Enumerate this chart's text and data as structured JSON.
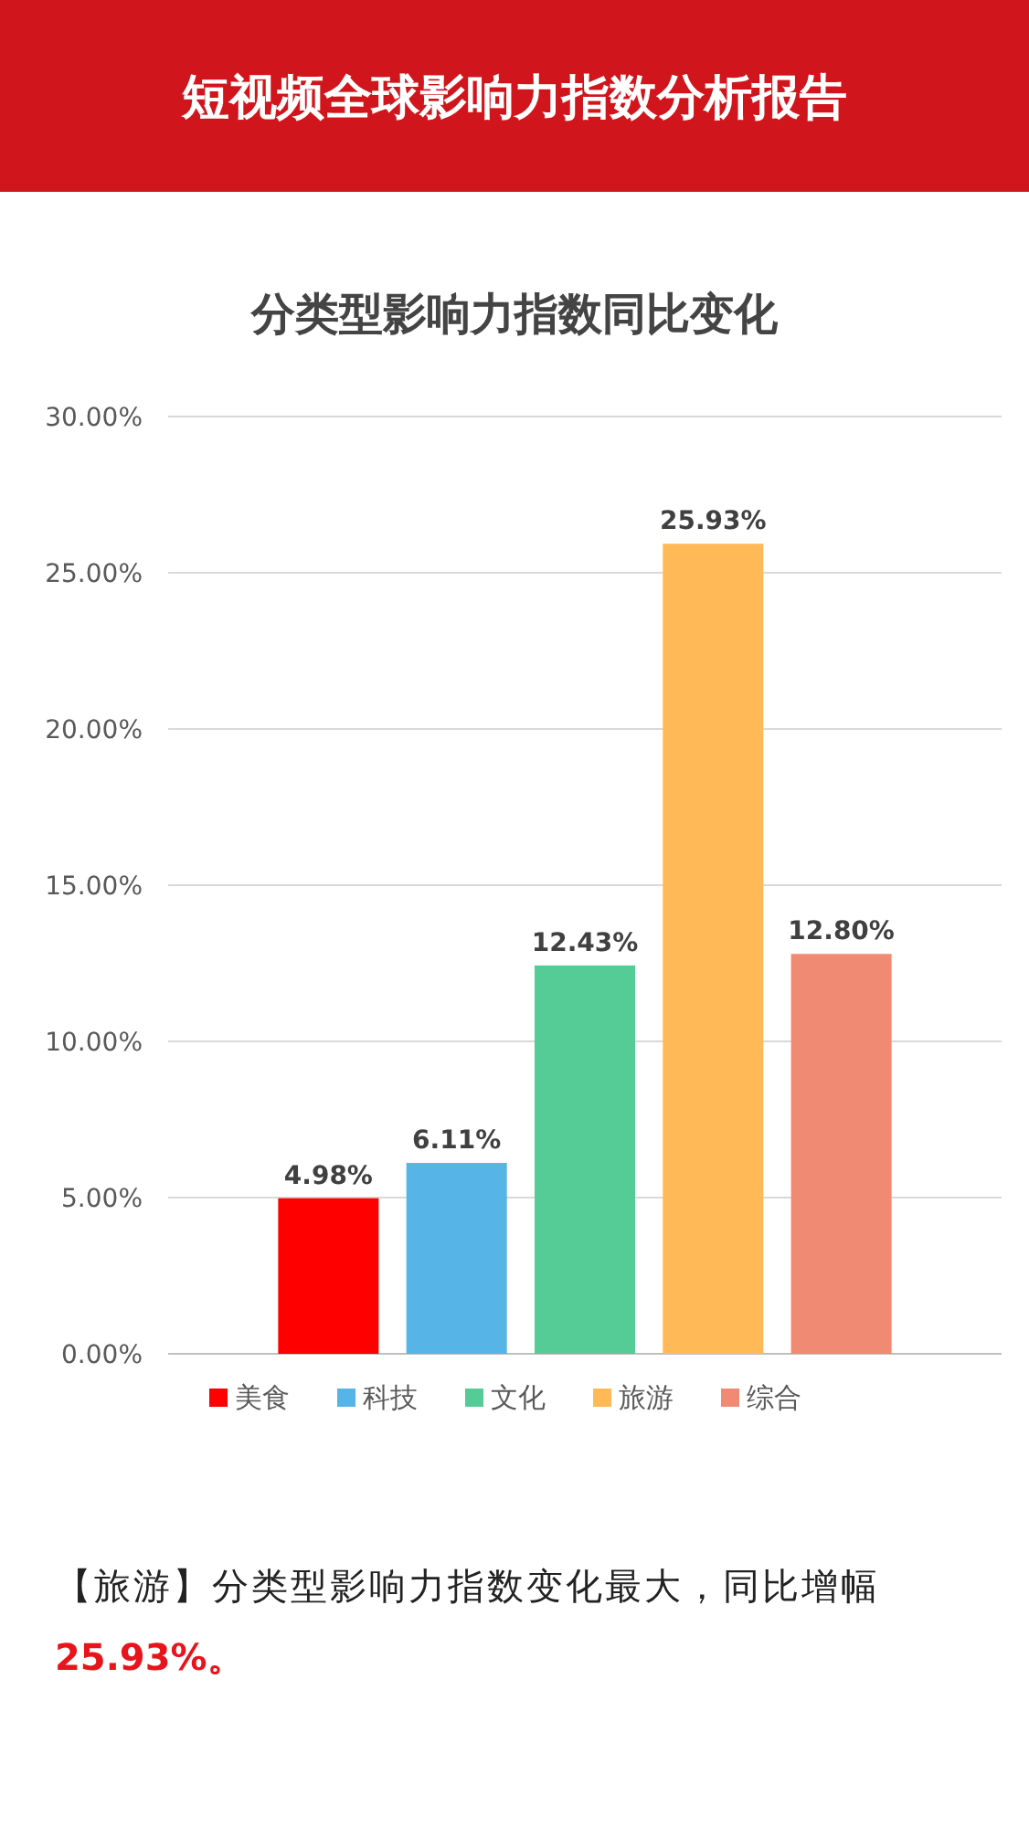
{
  "chart_data": {
    "type": "bar",
    "title": "分类型影响力指数同比变化",
    "subtitle": "短视频全球影响力指数分析报告",
    "categories": [
      null,
      null,
      null,
      null,
      null
    ],
    "series": [
      {
        "name": "美食",
        "color": "#ff0000",
        "values": [
          4.98,
          null,
          null,
          null,
          null
        ],
        "value_labels": [
          "4.98%",
          null,
          null,
          null,
          null
        ]
      },
      {
        "name": "科技",
        "color": "#56b4e6",
        "values": [
          null,
          6.11,
          null,
          null,
          null
        ],
        "value_labels": [
          null,
          "6.11%",
          null,
          null,
          null
        ]
      },
      {
        "name": "文化",
        "color": "#55cc95",
        "values": [
          null,
          null,
          12.43,
          null,
          null
        ],
        "value_labels": [
          null,
          null,
          "12.43%",
          null,
          null
        ]
      },
      {
        "name": "旅游",
        "color": "#ffba57",
        "values": [
          null,
          null,
          null,
          25.93,
          null
        ],
        "value_labels": [
          null,
          null,
          null,
          "25.93%",
          null
        ]
      },
      {
        "name": "综合",
        "color": "#f08a72",
        "values": [
          null,
          null,
          null,
          null,
          12.8
        ],
        "value_labels": [
          null,
          null,
          null,
          null,
          "12.80%"
        ]
      }
    ],
    "ylim": [
      0,
      30
    ],
    "yticks": [
      {
        "value": 0,
        "label": "0.00%"
      },
      {
        "value": 5,
        "label": "5.00%"
      },
      {
        "value": 10,
        "label": "10.00%"
      },
      {
        "value": 15,
        "label": "15.00%"
      },
      {
        "value": 20,
        "label": "20.00%"
      },
      {
        "value": 25,
        "label": "25.00%"
      },
      {
        "value": 30,
        "label": "30.00%"
      }
    ],
    "grid": "y",
    "legend": "bottom",
    "annotations": [
      "【旅游】分类型影响力指数变化最大，同比增幅",
      "25.93%。"
    ]
  }
}
